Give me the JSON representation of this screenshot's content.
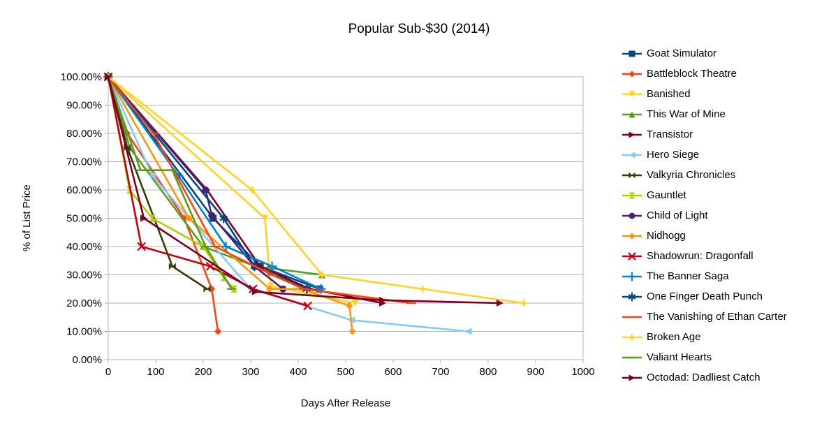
{
  "chart_data": {
    "type": "line",
    "title": "Popular Sub-$30 (2014)",
    "xlabel": "Days After Release",
    "ylabel": "% of List Price",
    "xlim": [
      0,
      1000
    ],
    "ylim": [
      0,
      100
    ],
    "x_ticks": [
      0,
      100,
      200,
      300,
      400,
      500,
      600,
      700,
      800,
      900,
      1000
    ],
    "x_tick_labels": [
      "0",
      "100",
      "200",
      "300",
      "400",
      "500",
      "600",
      "700",
      "800",
      "900",
      "1000"
    ],
    "y_ticks": [
      0,
      10,
      20,
      30,
      40,
      50,
      60,
      70,
      80,
      90,
      100
    ],
    "y_tick_labels": [
      "0.00%",
      "10.00%",
      "20.00%",
      "30.00%",
      "40.00%",
      "50.00%",
      "60.00%",
      "70.00%",
      "80.00%",
      "90.00%",
      "100.00%"
    ],
    "grid": "horizontal",
    "grid_color": "#b3b3b3",
    "axis_color": "#b3b3b3",
    "background_color": "#ffffff",
    "legend_position": "right",
    "series": [
      {
        "name": "Goat Simulator",
        "color": "#004586",
        "marker": "square",
        "points": [
          [
            0,
            100
          ],
          [
            221,
            50
          ],
          [
            320,
            33
          ],
          [
            445,
            25
          ]
        ]
      },
      {
        "name": "Battleblock Theatre",
        "color": "#ff420e",
        "marker": "diamond",
        "points": [
          [
            0,
            100
          ],
          [
            40,
            80
          ],
          [
            160,
            50
          ],
          [
            218,
            25
          ],
          [
            231,
            10
          ]
        ]
      },
      {
        "name": "Banished",
        "color": "#ffd320",
        "marker": "triangle-down",
        "points": [
          [
            0,
            100
          ],
          [
            330,
            50
          ],
          [
            342,
            26
          ],
          [
            520,
            20
          ]
        ]
      },
      {
        "name": "This War of Mine",
        "color": "#579d1c",
        "marker": "triangle-up",
        "points": [
          [
            0,
            100
          ],
          [
            45,
            75
          ],
          [
            200,
            40
          ],
          [
            310,
            33
          ],
          [
            450,
            30
          ]
        ]
      },
      {
        "name": "Transistor",
        "color": "#7e0021",
        "marker": "triangle-right",
        "points": [
          [
            0,
            100
          ],
          [
            208,
            60
          ],
          [
            320,
            33
          ],
          [
            425,
            25
          ],
          [
            578,
            20
          ]
        ]
      },
      {
        "name": "Hero Siege",
        "color": "#83caff",
        "marker": "triangle-left",
        "points": [
          [
            0,
            100
          ],
          [
            93,
            65
          ],
          [
            300,
            25
          ],
          [
            512,
            14
          ],
          [
            758,
            10
          ]
        ]
      },
      {
        "name": "Valkyria Chronicles",
        "color": "#314004",
        "marker": "bowtie",
        "points": [
          [
            0,
            100
          ],
          [
            40,
            75
          ],
          [
            135,
            33
          ],
          [
            208,
            25
          ]
        ]
      },
      {
        "name": "Gauntlet",
        "color": "#aecf00",
        "marker": "hourglass",
        "points": [
          [
            0,
            100
          ],
          [
            45,
            60
          ],
          [
            93,
            50
          ],
          [
            200,
            40
          ],
          [
            243,
            29
          ],
          [
            265,
            25
          ]
        ]
      },
      {
        "name": "Child of Light",
        "color": "#4b1f6f",
        "marker": "circle",
        "points": [
          [
            0,
            100
          ],
          [
            205,
            60
          ],
          [
            218,
            51
          ],
          [
            308,
            33
          ],
          [
            368,
            25
          ]
        ]
      },
      {
        "name": "Nidhogg",
        "color": "#ff950e",
        "marker": "diamond",
        "points": [
          [
            0,
            100
          ],
          [
            170,
            50
          ],
          [
            340,
            25
          ],
          [
            410,
            25
          ],
          [
            508,
            19
          ],
          [
            514,
            10
          ]
        ]
      },
      {
        "name": "Shadowrun: Dragonfall",
        "color": "#c5000b",
        "marker": "x",
        "points": [
          [
            0,
            100
          ],
          [
            70,
            40
          ],
          [
            215,
            33
          ],
          [
            305,
            25
          ],
          [
            420,
            19
          ]
        ]
      },
      {
        "name": "The Banner Saga",
        "color": "#0084d1",
        "marker": "plus",
        "points": [
          [
            0,
            100
          ],
          [
            148,
            65
          ],
          [
            248,
            40
          ],
          [
            345,
            33
          ],
          [
            448,
            25
          ]
        ]
      },
      {
        "name": "One Finger Death Punch",
        "color": "#004586",
        "marker": "asterisk",
        "points": [
          [
            0,
            100
          ],
          [
            243,
            50
          ],
          [
            308,
            33
          ],
          [
            418,
            25
          ]
        ]
      },
      {
        "name": "The Vanishing of Ethan Carter",
        "color": "#ff420e",
        "marker": "dash",
        "points": [
          [
            0,
            100
          ],
          [
            95,
            80
          ],
          [
            225,
            40
          ],
          [
            345,
            30
          ],
          [
            412,
            25
          ],
          [
            638,
            20
          ]
        ]
      },
      {
        "name": "Broken Age",
        "color": "#ffd320",
        "marker": "star4",
        "points": [
          [
            0,
            100
          ],
          [
            303,
            60
          ],
          [
            450,
            30
          ],
          [
            662,
            25
          ],
          [
            875,
            20
          ]
        ]
      },
      {
        "name": "Valiant Hearts",
        "color": "#579d1c",
        "marker": "dash",
        "points": [
          [
            0,
            100
          ],
          [
            68,
            67
          ],
          [
            135,
            67
          ],
          [
            205,
            40
          ],
          [
            260,
            25
          ]
        ]
      },
      {
        "name": "Octodad: Dadliest Catch",
        "color": "#7e0021",
        "marker": "triangle-right",
        "points": [
          [
            0,
            100
          ],
          [
            75,
            50
          ],
          [
            310,
            24
          ],
          [
            578,
            21
          ],
          [
            825,
            20
          ]
        ]
      }
    ]
  }
}
